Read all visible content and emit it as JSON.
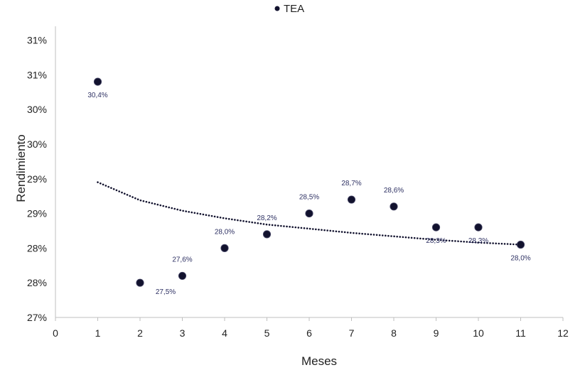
{
  "chart_data": {
    "type": "scatter",
    "title": "",
    "xlabel": "Meses",
    "ylabel": "Rendimiento",
    "xlim": [
      0,
      12
    ],
    "ylim": [
      27.0,
      31.2
    ],
    "x_ticks": [
      0,
      1,
      2,
      3,
      4,
      5,
      6,
      7,
      8,
      9,
      10,
      11,
      12
    ],
    "y_ticks": [
      {
        "value": 27.0,
        "label": "27%"
      },
      {
        "value": 27.5,
        "label": "28%"
      },
      {
        "value": 28.0,
        "label": "28%"
      },
      {
        "value": 28.5,
        "label": "29%"
      },
      {
        "value": 29.0,
        "label": "29%"
      },
      {
        "value": 29.5,
        "label": "30%"
      },
      {
        "value": 30.0,
        "label": "30%"
      },
      {
        "value": 30.5,
        "label": "31%"
      },
      {
        "value": 31.0,
        "label": "31%"
      }
    ],
    "grid": false,
    "legend_position": "top",
    "series": [
      {
        "name": "TEA",
        "color": "#12122e",
        "points": [
          {
            "x": 1,
            "y": 30.4,
            "label": "30,4%",
            "label_pos": "below"
          },
          {
            "x": 2,
            "y": 27.5,
            "label": "27,5%",
            "label_pos": "below-right"
          },
          {
            "x": 3,
            "y": 27.6,
            "label": "27,6%",
            "label_pos": "above"
          },
          {
            "x": 4,
            "y": 28.0,
            "label": "28,0%",
            "label_pos": "above"
          },
          {
            "x": 5,
            "y": 28.2,
            "label": "28,2%",
            "label_pos": "above"
          },
          {
            "x": 6,
            "y": 28.5,
            "label": "28,5%",
            "label_pos": "above"
          },
          {
            "x": 7,
            "y": 28.7,
            "label": "28,7%",
            "label_pos": "above"
          },
          {
            "x": 8,
            "y": 28.6,
            "label": "28,6%",
            "label_pos": "above"
          },
          {
            "x": 9,
            "y": 28.3,
            "label": "28,3%",
            "label_pos": "below"
          },
          {
            "x": 10,
            "y": 28.3,
            "label": "28,3%",
            "label_pos": "below"
          },
          {
            "x": 11,
            "y": 28.05,
            "label": "28,0%",
            "label_pos": "below"
          }
        ]
      }
    ],
    "trendline": {
      "type": "logarithmic",
      "style": "dotted",
      "x_range": [
        1,
        11
      ],
      "points": [
        {
          "x": 1,
          "y": 28.95
        },
        {
          "x": 2,
          "y": 28.69
        },
        {
          "x": 3,
          "y": 28.54
        },
        {
          "x": 4,
          "y": 28.43
        },
        {
          "x": 5,
          "y": 28.34
        },
        {
          "x": 6,
          "y": 28.28
        },
        {
          "x": 7,
          "y": 28.22
        },
        {
          "x": 8,
          "y": 28.17
        },
        {
          "x": 9,
          "y": 28.12
        },
        {
          "x": 10,
          "y": 28.08
        },
        {
          "x": 11,
          "y": 28.05
        }
      ]
    }
  }
}
